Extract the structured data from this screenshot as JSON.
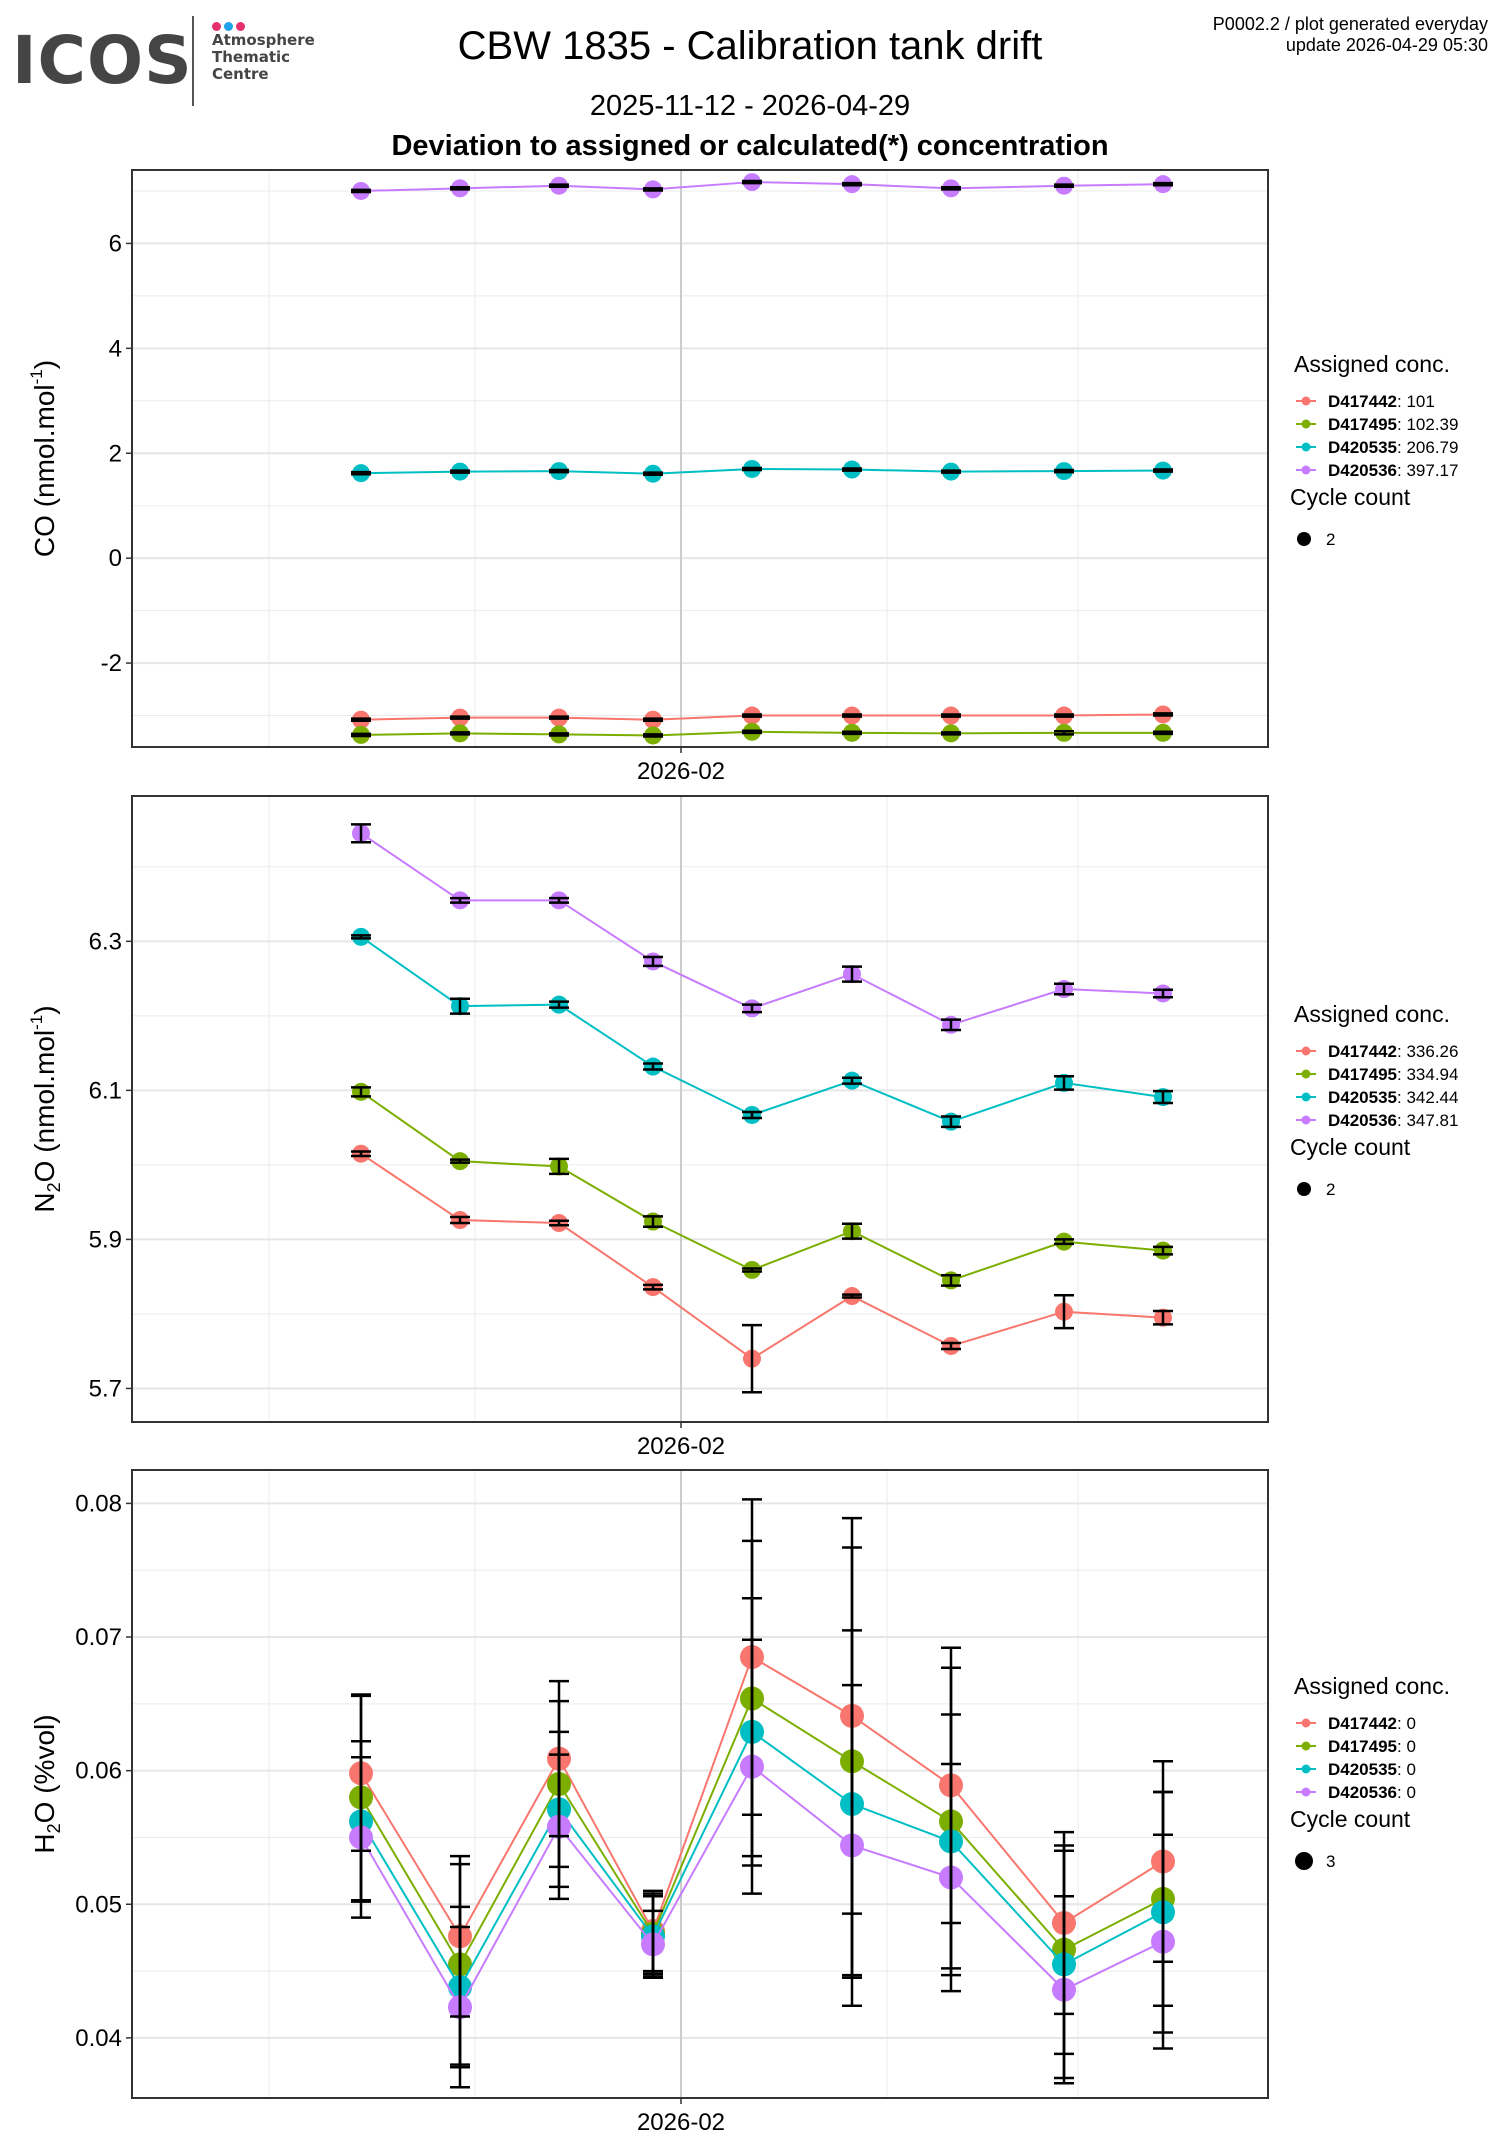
{
  "header": {
    "logo": {
      "wordmark": "ICOS",
      "subtitle_lines": [
        "Atmosphere",
        "Thematic",
        "Centre"
      ],
      "dot_colors": [
        "#e5306e",
        "#1fa0ea",
        "#e5306e"
      ]
    },
    "title": "CBW 1835 - Calibration tank drift",
    "date_range": "2025-11-12 - 2026-04-29",
    "section_title": "Deviation to assigned or calculated(*) concentration",
    "meta_line1": "P0002.2 / plot generated everyday",
    "meta_line2": "update  2026-04-29 05:30"
  },
  "series_colors": {
    "D417442": "#f8766d",
    "D417495": "#7cae00",
    "D420535": "#00bfc4",
    "D420536": "#c77cff"
  },
  "chart_data": [
    {
      "type": "line",
      "gas": "CO",
      "ylabel": "CO (nmol.mol",
      "ylabel_sup": "-1",
      "ylabel_end": ")",
      "xlabel": "",
      "x_tick_labels": [
        "2026-02"
      ],
      "x_index": [
        1,
        2,
        3,
        4,
        5,
        6,
        7,
        8,
        9
      ],
      "ylim": [
        -3.6,
        7.4
      ],
      "y_ticks": [
        -2,
        0,
        2,
        4,
        6
      ],
      "y_tick_labels": [
        "-2",
        "0",
        "2",
        "4",
        "6"
      ],
      "grid": true,
      "legend_position": "right",
      "legend_title": "Assigned conc.",
      "cycle_legend_title": "Cycle count",
      "cycle_count": "2",
      "series": [
        {
          "name": "D417442",
          "assigned": "101",
          "values": [
            -3.08,
            -3.04,
            -3.04,
            -3.08,
            -3.0,
            -3.0,
            -3.0,
            -3.0,
            -2.98
          ],
          "errors": [
            0.02,
            0.02,
            0.02,
            0.02,
            0.02,
            0.02,
            0.02,
            0.02,
            0.02
          ]
        },
        {
          "name": "D417495",
          "assigned": "102.39",
          "values": [
            -3.37,
            -3.34,
            -3.36,
            -3.38,
            -3.31,
            -3.33,
            -3.34,
            -3.33,
            -3.33
          ],
          "errors": [
            0.02,
            0.02,
            0.02,
            0.02,
            0.02,
            0.02,
            0.02,
            0.03,
            0.02
          ]
        },
        {
          "name": "D420535",
          "assigned": "206.79",
          "values": [
            1.62,
            1.65,
            1.66,
            1.61,
            1.7,
            1.69,
            1.65,
            1.66,
            1.67
          ],
          "errors": [
            0.02,
            0.02,
            0.02,
            0.02,
            0.02,
            0.02,
            0.02,
            0.02,
            0.02
          ]
        },
        {
          "name": "D420536",
          "assigned": "397.17",
          "values": [
            7.0,
            7.05,
            7.1,
            7.03,
            7.17,
            7.13,
            7.05,
            7.1,
            7.13
          ],
          "errors": [
            0.02,
            0.02,
            0.02,
            0.02,
            0.02,
            0.02,
            0.02,
            0.02,
            0.02
          ]
        }
      ]
    },
    {
      "type": "line",
      "gas": "N2O",
      "ylabel": "N",
      "ylabel_sub": "2",
      "ylabel_rest": "O (nmol.mol",
      "ylabel_sup": "-1",
      "ylabel_end": ")",
      "xlabel": "",
      "x_tick_labels": [
        "2026-02"
      ],
      "x_index": [
        1,
        2,
        3,
        4,
        5,
        6,
        7,
        8,
        9
      ],
      "ylim": [
        5.655,
        6.495
      ],
      "y_ticks": [
        5.7,
        5.9,
        6.1,
        6.3
      ],
      "y_tick_labels": [
        "5.7",
        "5.9",
        "6.1",
        "6.3"
      ],
      "grid": true,
      "legend_position": "right",
      "legend_title": "Assigned conc.",
      "cycle_legend_title": "Cycle count",
      "cycle_count": "2",
      "series": [
        {
          "name": "D417442",
          "assigned": "336.26",
          "values": [
            6.015,
            5.926,
            5.922,
            5.836,
            5.74,
            5.824,
            5.757,
            5.803,
            5.795
          ],
          "errors": [
            0.003,
            0.004,
            0.003,
            0.003,
            0.045,
            0.002,
            0.004,
            0.022,
            0.009
          ]
        },
        {
          "name": "D417495",
          "assigned": "334.94",
          "values": [
            6.098,
            6.005,
            5.998,
            5.924,
            5.859,
            5.911,
            5.845,
            5.897,
            5.885
          ],
          "errors": [
            0.006,
            0.002,
            0.01,
            0.007,
            0.002,
            0.01,
            0.007,
            0.003,
            0.005
          ]
        },
        {
          "name": "D420535",
          "assigned": "342.44",
          "values": [
            6.306,
            6.213,
            6.215,
            6.132,
            6.067,
            6.113,
            6.058,
            6.11,
            6.091
          ],
          "errors": [
            0.002,
            0.01,
            0.004,
            0.004,
            0.004,
            0.004,
            0.007,
            0.009,
            0.008
          ]
        },
        {
          "name": "D420536",
          "assigned": "347.81",
          "values": [
            6.445,
            6.355,
            6.355,
            6.273,
            6.21,
            6.256,
            6.188,
            6.236,
            6.23
          ],
          "errors": [
            0.012,
            0.003,
            0.003,
            0.006,
            0.005,
            0.01,
            0.007,
            0.007,
            0.005
          ]
        }
      ]
    },
    {
      "type": "line",
      "gas": "H2O",
      "ylabel": "H",
      "ylabel_sub": "2",
      "ylabel_rest": "O (%vol)",
      "xlabel": "",
      "x_tick_labels": [
        "2026-02"
      ],
      "x_index": [
        1,
        2,
        3,
        4,
        5,
        6,
        7,
        8,
        9
      ],
      "ylim": [
        0.0355,
        0.0825
      ],
      "y_ticks": [
        0.04,
        0.05,
        0.06,
        0.07,
        0.08
      ],
      "y_tick_labels": [
        "0.04",
        "0.05",
        "0.06",
        "0.07",
        "0.08"
      ],
      "grid": true,
      "legend_position": "right",
      "legend_title": "Assigned conc.",
      "cycle_legend_title": "Cycle count",
      "cycle_count": "3",
      "series": [
        {
          "name": "D417442",
          "assigned": "0",
          "values": [
            0.0598,
            0.0476,
            0.0609,
            0.048,
            0.0685,
            0.0641,
            0.0589,
            0.0486,
            0.0532
          ],
          "errors": [
            0.0058,
            0.006,
            0.0058,
            0.003,
            0.0118,
            0.0148,
            0.0103,
            0.0068,
            0.0075
          ]
        },
        {
          "name": "D417495",
          "assigned": "0",
          "values": [
            0.058,
            0.0455,
            0.059,
            0.0478,
            0.0654,
            0.0607,
            0.0562,
            0.0466,
            0.0504
          ],
          "errors": [
            0.0077,
            0.0075,
            0.0062,
            0.003,
            0.0118,
            0.016,
            0.0115,
            0.0078,
            0.008
          ]
        },
        {
          "name": "D420535",
          "assigned": "0",
          "values": [
            0.0562,
            0.0438,
            0.0571,
            0.0476,
            0.0629,
            0.0575,
            0.0547,
            0.0455,
            0.0494
          ],
          "errors": [
            0.006,
            0.006,
            0.0058,
            0.003,
            0.01,
            0.013,
            0.0095,
            0.0085,
            0.009
          ]
        },
        {
          "name": "D420536",
          "assigned": "0",
          "values": [
            0.055,
            0.0423,
            0.0558,
            0.047,
            0.0603,
            0.0544,
            0.052,
            0.0436,
            0.0472
          ],
          "errors": [
            0.006,
            0.006,
            0.0054,
            0.0025,
            0.0095,
            0.012,
            0.0085,
            0.007,
            0.008
          ]
        }
      ]
    }
  ]
}
